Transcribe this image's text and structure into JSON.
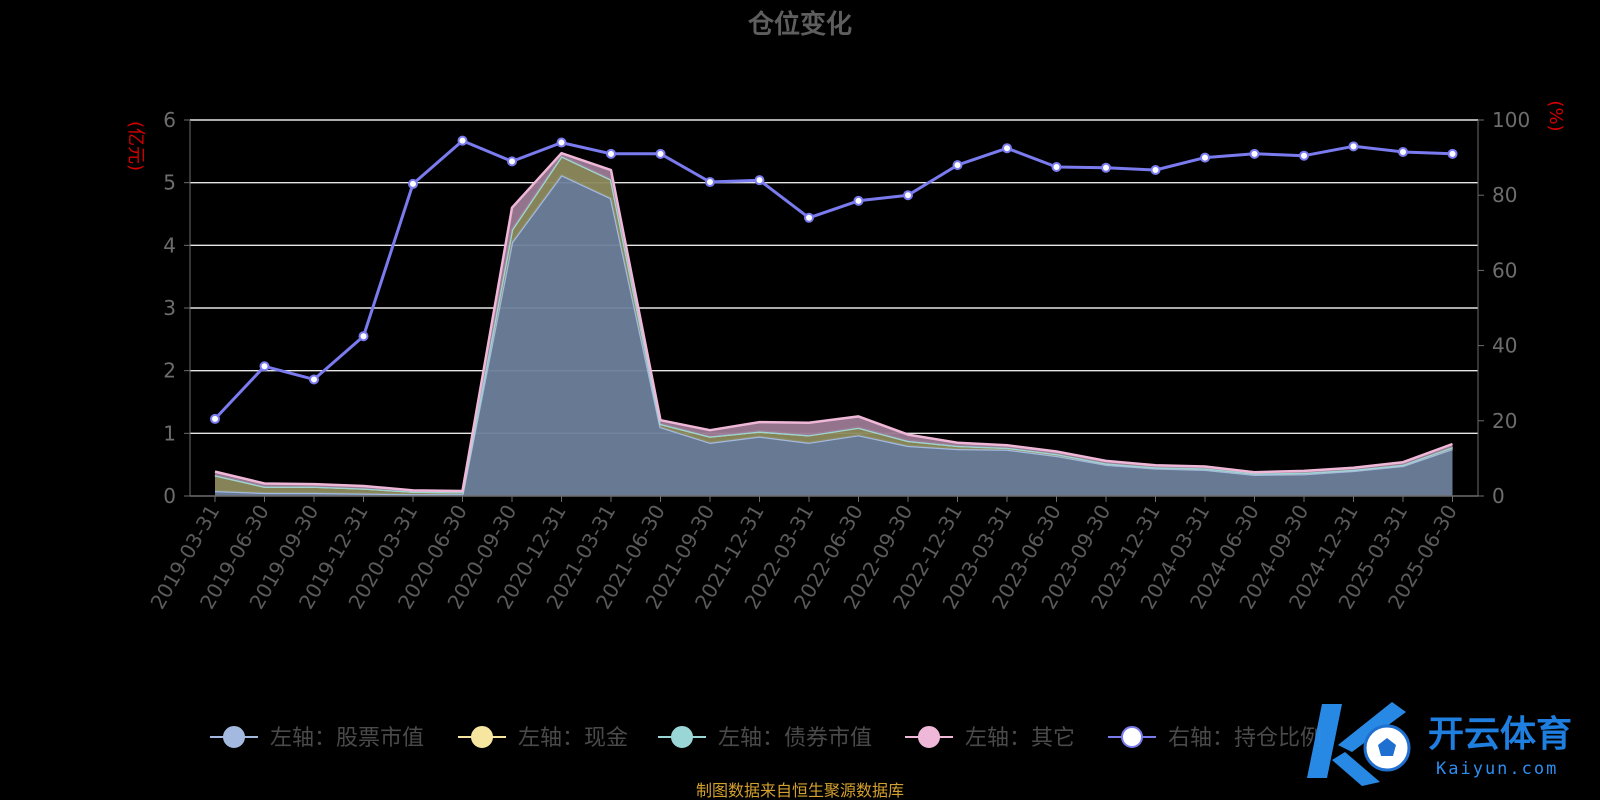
{
  "chart_data": {
    "type": "area",
    "title": "仓位变化",
    "ylabel_left": "(亿元)",
    "ylabel_right": "(%)",
    "ylim_left": [
      0,
      6
    ],
    "yticks_left": [
      "0",
      "1",
      "2",
      "3",
      "4",
      "5",
      "6"
    ],
    "ylim_right": [
      0,
      100
    ],
    "yticks_right": [
      "0",
      "20",
      "40",
      "60",
      "80",
      "100"
    ],
    "grid": true,
    "legend_position": "bottom",
    "x": [
      "2019-03-31",
      "2019-06-30",
      "2019-09-30",
      "2019-12-31",
      "2020-03-31",
      "2020-06-30",
      "2020-09-30",
      "2020-12-31",
      "2021-03-31",
      "2021-06-30",
      "2021-09-30",
      "2021-12-31",
      "2022-03-31",
      "2022-06-30",
      "2022-09-30",
      "2022-12-31",
      "2023-03-31",
      "2023-06-30",
      "2023-09-30",
      "2023-12-31",
      "2024-03-31",
      "2024-06-30",
      "2024-09-30",
      "2024-12-31",
      "2025-03-31",
      "2025-06-30"
    ],
    "series": [
      {
        "name": "左轴：股票市值",
        "axis": "left",
        "kind": "stacked-area",
        "color": "#a3b9e0",
        "fill": "#6e7f9b",
        "values": [
          0.08,
          0.05,
          0.05,
          0.04,
          0.03,
          0.03,
          4.05,
          5.12,
          4.75,
          1.1,
          0.85,
          0.95,
          0.85,
          0.97,
          0.8,
          0.75,
          0.74,
          0.64,
          0.5,
          0.44,
          0.42,
          0.34,
          0.35,
          0.4,
          0.48,
          0.75
        ]
      },
      {
        "name": "左轴：现金",
        "axis": "left",
        "kind": "stacked-area",
        "color": "#f7e6a0",
        "fill": "#8c8a5c",
        "values": [
          0.25,
          0.1,
          0.1,
          0.08,
          0.04,
          0.03,
          0.2,
          0.3,
          0.3,
          0.05,
          0.1,
          0.08,
          0.12,
          0.12,
          0.08,
          0.05,
          0.03,
          0.03,
          0.02,
          0.02,
          0.02,
          0.02,
          0.02,
          0.02,
          0.02,
          0.03
        ]
      },
      {
        "name": "左轴：债券市值",
        "axis": "left",
        "kind": "stacked-area",
        "color": "#9ad6d6",
        "fill": "#7aa5a5",
        "values": [
          0,
          0,
          0,
          0,
          0,
          0,
          0,
          0,
          0,
          0,
          0,
          0,
          0,
          0,
          0,
          0,
          0,
          0,
          0,
          0,
          0,
          0,
          0,
          0,
          0,
          0
        ]
      },
      {
        "name": "左轴：其它",
        "axis": "left",
        "kind": "stacked-area",
        "color": "#f0b8d8",
        "fill": "#9c7a93",
        "values": [
          0.06,
          0.05,
          0.04,
          0.04,
          0.02,
          0.02,
          0.35,
          0.05,
          0.15,
          0.06,
          0.1,
          0.15,
          0.2,
          0.18,
          0.1,
          0.05,
          0.04,
          0.04,
          0.04,
          0.03,
          0.03,
          0.02,
          0.03,
          0.03,
          0.04,
          0.05
        ]
      },
      {
        "name": "右轴：持仓比例",
        "axis": "right",
        "kind": "line",
        "color": "#7b7bf0",
        "values": [
          20.5,
          34.5,
          31,
          42.5,
          83,
          94.5,
          89,
          94,
          91,
          91,
          83.5,
          84,
          74,
          78.5,
          80,
          88,
          92.5,
          87.5,
          87.3,
          86.7,
          90,
          91,
          90.5,
          93,
          91.5,
          91
        ]
      }
    ]
  },
  "title": "仓位变化",
  "source": "制图数据来自恒生聚源数据库",
  "watermark": {
    "brand_cn": "开云体育",
    "brand_en": "Kaiyun.com",
    "logo_letter": "K"
  }
}
